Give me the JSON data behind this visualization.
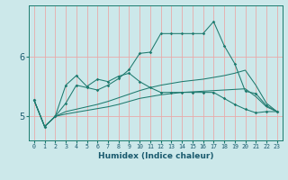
{
  "background_color": "#cce8ea",
  "grid_color": "#e8c8c8",
  "line_color": "#1e7a6e",
  "xlabel": "Humidex (Indice chaleur)",
  "xlim": [
    -0.5,
    23.5
  ],
  "ylim": [
    4.6,
    6.85
  ],
  "yticks": [
    5,
    6
  ],
  "xtick_labels": [
    "0",
    "1",
    "2",
    "3",
    "4",
    "5",
    "6",
    "7",
    "8",
    "9",
    "10",
    "11",
    "12",
    "13",
    "14",
    "15",
    "16",
    "17",
    "18",
    "19",
    "20",
    "21",
    "22",
    "23"
  ],
  "line1_x": [
    0,
    1,
    2,
    3,
    4,
    5,
    6,
    7,
    8,
    9,
    10,
    11,
    12,
    13,
    14,
    15,
    16,
    17,
    18,
    19,
    20,
    21,
    22,
    23
  ],
  "line1_y": [
    5.27,
    4.83,
    5.0,
    5.22,
    5.52,
    5.48,
    5.44,
    5.52,
    5.63,
    5.78,
    6.05,
    6.07,
    6.38,
    6.38,
    6.38,
    6.38,
    6.38,
    6.58,
    6.18,
    5.88,
    5.42,
    5.38,
    5.18,
    5.08
  ],
  "line2_x": [
    0,
    1,
    2,
    3,
    4,
    5,
    6,
    7,
    8,
    9,
    10,
    11,
    12,
    13,
    14,
    15,
    16,
    17,
    18,
    19,
    20,
    21,
    22,
    23
  ],
  "line2_y": [
    5.27,
    4.83,
    5.0,
    5.52,
    5.68,
    5.5,
    5.62,
    5.58,
    5.67,
    5.72,
    5.58,
    5.48,
    5.4,
    5.4,
    5.4,
    5.4,
    5.4,
    5.4,
    5.3,
    5.2,
    5.12,
    5.06,
    5.08,
    5.08
  ],
  "line3_x": [
    0,
    1,
    2,
    3,
    4,
    5,
    6,
    7,
    8,
    9,
    10,
    11,
    12,
    13,
    14,
    15,
    16,
    17,
    18,
    19,
    20,
    21,
    22,
    23
  ],
  "line3_y": [
    5.27,
    4.83,
    5.0,
    5.08,
    5.12,
    5.16,
    5.2,
    5.25,
    5.31,
    5.37,
    5.43,
    5.48,
    5.52,
    5.55,
    5.58,
    5.6,
    5.62,
    5.65,
    5.68,
    5.72,
    5.77,
    5.52,
    5.22,
    5.08
  ],
  "line4_x": [
    0,
    1,
    2,
    3,
    4,
    5,
    6,
    7,
    8,
    9,
    10,
    11,
    12,
    13,
    14,
    15,
    16,
    17,
    18,
    19,
    20,
    21,
    22,
    23
  ],
  "line4_y": [
    5.27,
    4.83,
    5.0,
    5.04,
    5.07,
    5.1,
    5.13,
    5.16,
    5.2,
    5.25,
    5.3,
    5.33,
    5.36,
    5.38,
    5.4,
    5.41,
    5.42,
    5.43,
    5.44,
    5.45,
    5.46,
    5.33,
    5.16,
    5.08
  ]
}
